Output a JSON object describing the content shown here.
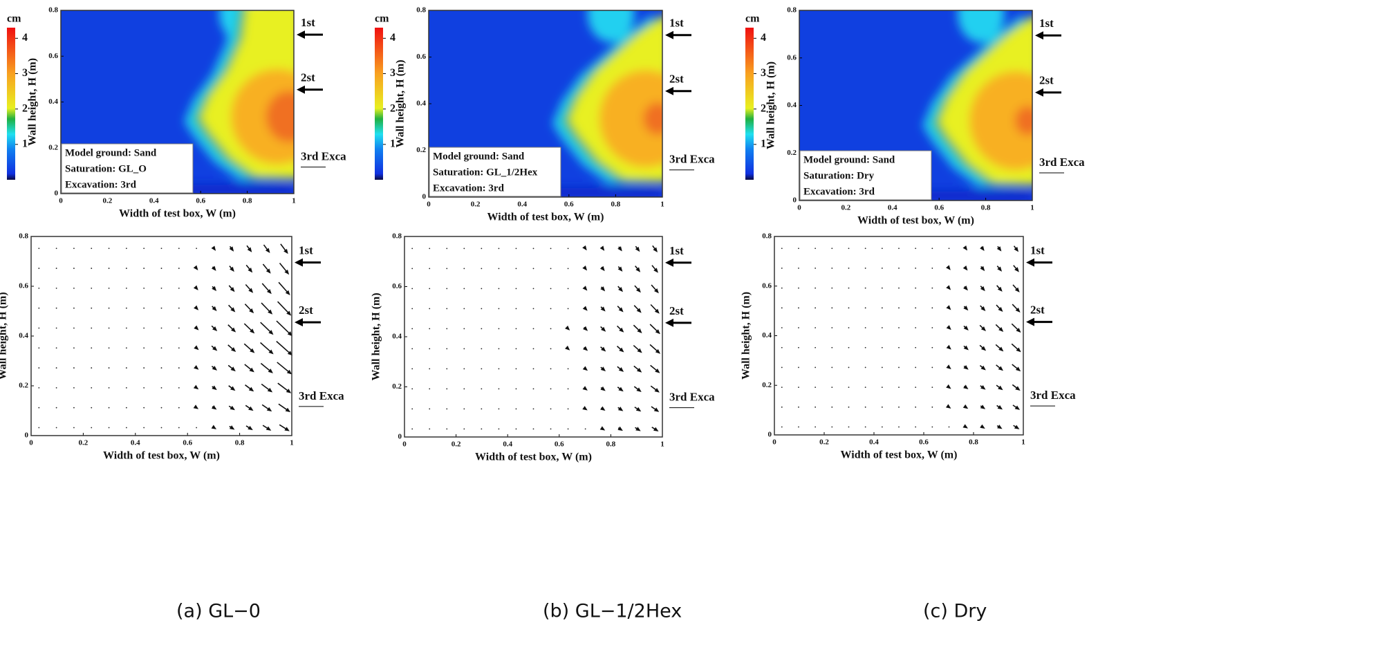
{
  "captions": [
    "(a) GL−0",
    "(b) GL−1/2Hex",
    "(c) Dry"
  ],
  "chart_data": [
    {
      "type": "heatmap",
      "xlabel": "Width of test box, W (m)",
      "ylabel": "Wall height, H (m)",
      "xlim": [
        0,
        1
      ],
      "ylim": [
        0,
        0.8
      ],
      "xticks": [
        0,
        0.2,
        0.4,
        0.6,
        0.8,
        1
      ],
      "yticks": [
        0,
        0.2,
        0.4,
        0.6,
        0.8
      ],
      "colorbar": {
        "label": "cm",
        "lim": [
          0,
          4.3
        ],
        "ticks": [
          1,
          2,
          3,
          4
        ]
      },
      "legend": [
        "Model ground: Sand",
        "Saturation: GL_O",
        "Excavation: 3rd"
      ],
      "annotations": [
        "1st",
        "2st",
        "3rd Exca"
      ]
    },
    {
      "type": "quiver",
      "xlabel": "Width of test box, W (m)",
      "ylabel": "Wall height, H (m)",
      "xlim": [
        0,
        1
      ],
      "ylim": [
        0,
        0.8
      ],
      "xticks": [
        0,
        0.2,
        0.4,
        0.6,
        0.8,
        1
      ],
      "yticks": [
        0,
        0.2,
        0.4,
        0.6,
        0.8
      ],
      "annotations": [
        "1st",
        "2st",
        "3rd Exca"
      ]
    },
    {
      "type": "heatmap",
      "xlabel": "Width of test box, W (m)",
      "ylabel": "Wall height, H (m)",
      "xlim": [
        0,
        1
      ],
      "ylim": [
        0,
        0.8
      ],
      "xticks": [
        0,
        0.2,
        0.4,
        0.6,
        0.8,
        1
      ],
      "yticks": [
        0,
        0.2,
        0.4,
        0.6,
        0.8
      ],
      "colorbar": {
        "label": "cm",
        "lim": [
          0,
          4.3
        ],
        "ticks": [
          1,
          2,
          3,
          4
        ]
      },
      "legend": [
        "Model ground: Sand",
        "Saturation: GL_1/2Hex",
        "Excavation: 3rd"
      ],
      "annotations": [
        "1st",
        "2st",
        "3rd Exca"
      ]
    },
    {
      "type": "quiver",
      "xlabel": "Width of test box, W (m)",
      "ylabel": "Wall height, H (m)",
      "xlim": [
        0,
        1
      ],
      "ylim": [
        0,
        0.8
      ],
      "xticks": [
        0,
        0.2,
        0.4,
        0.6,
        0.8,
        1
      ],
      "yticks": [
        0,
        0.2,
        0.4,
        0.6,
        0.8
      ],
      "annotations": [
        "1st",
        "2st",
        "3rd Exca"
      ]
    },
    {
      "type": "heatmap",
      "xlabel": "Width of test box, W (m)",
      "ylabel": "Wall height, H (m)",
      "xlim": [
        0,
        1
      ],
      "ylim": [
        0,
        0.8
      ],
      "xticks": [
        0,
        0.2,
        0.4,
        0.6,
        0.8,
        1
      ],
      "yticks": [
        0,
        0.2,
        0.4,
        0.6,
        0.8
      ],
      "colorbar": {
        "label": "cm",
        "lim": [
          0,
          4.3
        ],
        "ticks": [
          1,
          2,
          3,
          4
        ]
      },
      "legend": [
        "Model ground: Sand",
        "Saturation: Dry",
        "Excavation: 3rd"
      ],
      "annotations": [
        "1st",
        "2st",
        "3rd Exca"
      ]
    },
    {
      "type": "quiver",
      "xlabel": "Width of test box, W (m)",
      "ylabel": "Wall height, H (m)",
      "xlim": [
        0,
        1
      ],
      "ylim": [
        0,
        0.8
      ],
      "xticks": [
        0,
        0.2,
        0.4,
        0.6,
        0.8,
        1
      ],
      "yticks": [
        0,
        0.2,
        0.4,
        0.6,
        0.8
      ],
      "annotations": [
        "1st",
        "2st",
        "3rd Exca"
      ]
    }
  ]
}
